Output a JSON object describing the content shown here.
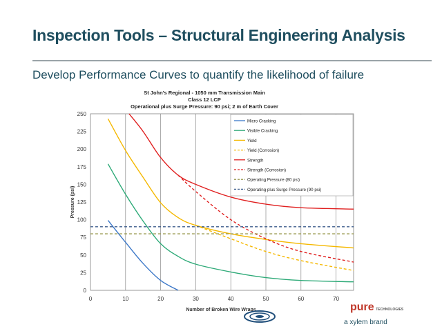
{
  "slide": {
    "title": "Inspection Tools – Structural Engineering Analysis",
    "subtitle": "Develop Performance Curves to quantify the likelihood of failure"
  },
  "brand": {
    "logo_text": "pure",
    "logo_sub": "TECHNOLOGIES",
    "tagline": "a xylem brand"
  },
  "chart_data": {
    "type": "line",
    "title_lines": [
      "St John's Regional - 1050 mm Transmission Main",
      "Class 12 LCP",
      "Operational plus Surge Pressure:  90 psi; 2 m of Earth Cover"
    ],
    "xlabel": "Number of Broken Wire Wraps",
    "ylabel": "Pressure (psi)",
    "xlim": [
      0,
      75
    ],
    "ylim": [
      0,
      250
    ],
    "xticks": [
      0,
      10,
      20,
      30,
      40,
      50,
      60,
      70
    ],
    "yticks": [
      0,
      25,
      50,
      75,
      100,
      125,
      150,
      175,
      200,
      225,
      250
    ],
    "grid": "vertical",
    "legend_position": "top-right",
    "series": [
      {
        "name": "Micro Cracking",
        "color": "#3c78c8",
        "dash": "solid",
        "x": [
          5,
          10,
          15,
          20,
          25
        ],
        "y": [
          99,
          68,
          38,
          14,
          0
        ]
      },
      {
        "name": "Visible Cracking",
        "color": "#2eaa78",
        "dash": "solid",
        "x": [
          5,
          10,
          15,
          20,
          25,
          30,
          40,
          50,
          60,
          75
        ],
        "y": [
          179,
          136,
          98,
          66,
          48,
          37,
          26,
          18,
          14,
          12
        ]
      },
      {
        "name": "Yield",
        "color": "#f5b800",
        "dash": "solid",
        "x": [
          5,
          10,
          15,
          20,
          25,
          30,
          40,
          50,
          60,
          75
        ],
        "y": [
          243,
          198,
          160,
          124,
          103,
          92,
          80,
          72,
          66,
          60
        ]
      },
      {
        "name": "Yield (Corrosion)",
        "color": "#f5b800",
        "dash": "dashed",
        "x": [
          30,
          40,
          50,
          60,
          75
        ],
        "y": [
          92,
          73,
          55,
          42,
          28
        ]
      },
      {
        "name": "Strength",
        "color": "#e02020",
        "dash": "solid",
        "x": [
          11,
          15,
          20,
          25,
          30,
          40,
          50,
          60,
          75
        ],
        "y": [
          250,
          225,
          188,
          163,
          150,
          132,
          122,
          117,
          115
        ]
      },
      {
        "name": "Strength (Corrosion)",
        "color": "#e02020",
        "dash": "dashed",
        "x": [
          25,
          30,
          40,
          50,
          60,
          75
        ],
        "y": [
          163,
          140,
          100,
          73,
          55,
          40
        ]
      },
      {
        "name": "Operating Pressure (80 psi)",
        "color": "#9a9a50",
        "dash": "dashed",
        "x": [
          0,
          75
        ],
        "y": [
          80,
          80
        ]
      },
      {
        "name": "Operating plus Surge Pressure (90 psi)",
        "color": "#3a5a8a",
        "dash": "dashed",
        "x": [
          0,
          75
        ],
        "y": [
          90,
          90
        ]
      }
    ]
  }
}
